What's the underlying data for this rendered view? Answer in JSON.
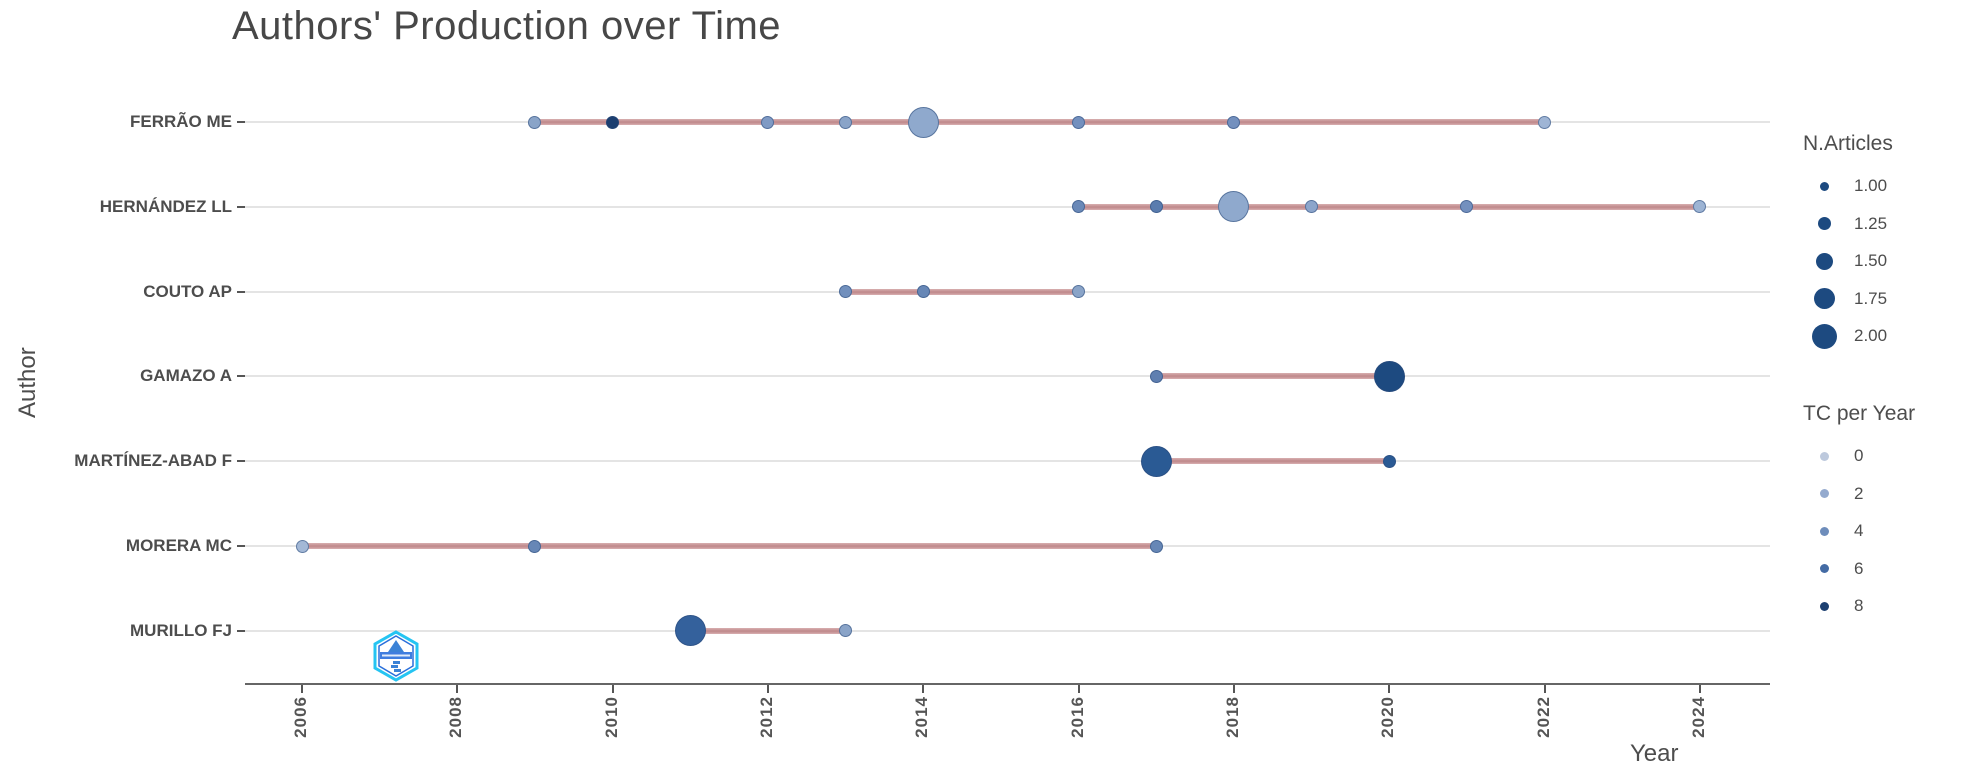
{
  "title": "Authors' Production over Time",
  "watermark": "bibliometrix-logo",
  "colors": {
    "title_text": "#474747",
    "axis_text": "#4d4d4d",
    "timeline": "#c18c8e",
    "row_gridline": "#e4e4e4",
    "legend_size_dot": "#1d4a80",
    "logo_cyan": "#25c4f2",
    "logo_blue": "#2a6fdb"
  },
  "chart_data": {
    "type": "scatter",
    "title": "Authors' Production over Time",
    "xlabel": "Year",
    "ylabel": "Author",
    "x_ticks": [
      2006,
      2008,
      2010,
      2012,
      2014,
      2016,
      2018,
      2020,
      2022,
      2024
    ],
    "x_range": [
      2005.3,
      2024.9
    ],
    "grid": "horizontal-only",
    "size_field": "N.Articles",
    "color_field": "TC per Year",
    "legend": {
      "position": "right",
      "size": {
        "title": "N.Articles",
        "entries": [
          {
            "label": "1.00",
            "value": 1.0
          },
          {
            "label": "1.25",
            "value": 1.25
          },
          {
            "label": "1.50",
            "value": 1.5
          },
          {
            "label": "1.75",
            "value": 1.75
          },
          {
            "label": "2.00",
            "value": 2.0
          }
        ]
      },
      "color": {
        "title": "TC per Year",
        "entries": [
          {
            "label": "0",
            "color": "#bdc9dd"
          },
          {
            "label": "2",
            "color": "#94aace"
          },
          {
            "label": "4",
            "color": "#6e8dbb"
          },
          {
            "label": "6",
            "color": "#446ba4"
          },
          {
            "label": "8",
            "color": "#1c3f70"
          }
        ]
      }
    },
    "series": [
      {
        "name": "FERRÃO ME",
        "line_start": 2009,
        "line_end": 2022,
        "points": [
          {
            "year": 2009,
            "n_articles": 1,
            "tc_per_year": 2,
            "color": "#8aa4c8"
          },
          {
            "year": 2010,
            "n_articles": 1,
            "tc_per_year": 8,
            "color": "#1c3f70"
          },
          {
            "year": 2012,
            "n_articles": 1,
            "tc_per_year": 3,
            "color": "#7f9ac4"
          },
          {
            "year": 2013,
            "n_articles": 1,
            "tc_per_year": 2,
            "color": "#8aa4c8"
          },
          {
            "year": 2014,
            "n_articles": 2,
            "tc_per_year": 2,
            "color": "#8fa9cd"
          },
          {
            "year": 2016,
            "n_articles": 1,
            "tc_per_year": 3,
            "color": "#7390be"
          },
          {
            "year": 2018,
            "n_articles": 1,
            "tc_per_year": 3,
            "color": "#7390be"
          },
          {
            "year": 2022,
            "n_articles": 1,
            "tc_per_year": 1,
            "color": "#9fb5d5"
          }
        ]
      },
      {
        "name": "HERNÁNDEZ LL",
        "line_start": 2016,
        "line_end": 2024,
        "points": [
          {
            "year": 2016,
            "n_articles": 1,
            "tc_per_year": 4,
            "color": "#6a89b8"
          },
          {
            "year": 2017,
            "n_articles": 1,
            "tc_per_year": 5,
            "color": "#5a7cae"
          },
          {
            "year": 2018,
            "n_articles": 2,
            "tc_per_year": 2,
            "color": "#8fa9cd"
          },
          {
            "year": 2019,
            "n_articles": 1,
            "tc_per_year": 2,
            "color": "#8ca5cb"
          },
          {
            "year": 2021,
            "n_articles": 1,
            "tc_per_year": 3,
            "color": "#7390be"
          },
          {
            "year": 2024,
            "n_articles": 1,
            "tc_per_year": 1,
            "color": "#9db4d4"
          }
        ]
      },
      {
        "name": "COUTO AP",
        "line_start": 2013,
        "line_end": 2016,
        "points": [
          {
            "year": 2013,
            "n_articles": 1,
            "tc_per_year": 3,
            "color": "#7290bd"
          },
          {
            "year": 2014,
            "n_articles": 1,
            "tc_per_year": 4,
            "color": "#6787b6"
          },
          {
            "year": 2016,
            "n_articles": 1,
            "tc_per_year": 2,
            "color": "#8aa4c8"
          }
        ]
      },
      {
        "name": "GAMAZO A",
        "line_start": 2017,
        "line_end": 2020,
        "points": [
          {
            "year": 2017,
            "n_articles": 1,
            "tc_per_year": 4,
            "color": "#5f7fb0"
          },
          {
            "year": 2020,
            "n_articles": 2,
            "tc_per_year": 7,
            "color": "#1d4a80"
          }
        ]
      },
      {
        "name": "MARTÍNEZ-ABAD F",
        "line_start": 2017,
        "line_end": 2020,
        "points": [
          {
            "year": 2017,
            "n_articles": 2,
            "tc_per_year": 6,
            "color": "#2a5a94"
          },
          {
            "year": 2020,
            "n_articles": 1,
            "tc_per_year": 6,
            "color": "#2a5a94"
          }
        ]
      },
      {
        "name": "MORERA MC",
        "line_start": 2006,
        "line_end": 2017,
        "points": [
          {
            "year": 2006,
            "n_articles": 1,
            "tc_per_year": 1,
            "color": "#a3b8d6"
          },
          {
            "year": 2009,
            "n_articles": 1,
            "tc_per_year": 4,
            "color": "#6787b6"
          },
          {
            "year": 2017,
            "n_articles": 1,
            "tc_per_year": 4,
            "color": "#6787b6"
          }
        ]
      },
      {
        "name": "MURILLO FJ",
        "line_start": 2011,
        "line_end": 2013,
        "points": [
          {
            "year": 2011,
            "n_articles": 2,
            "tc_per_year": 5,
            "color": "#34619c"
          },
          {
            "year": 2013,
            "n_articles": 1,
            "tc_per_year": 2,
            "color": "#8aa4c8"
          }
        ]
      }
    ]
  }
}
